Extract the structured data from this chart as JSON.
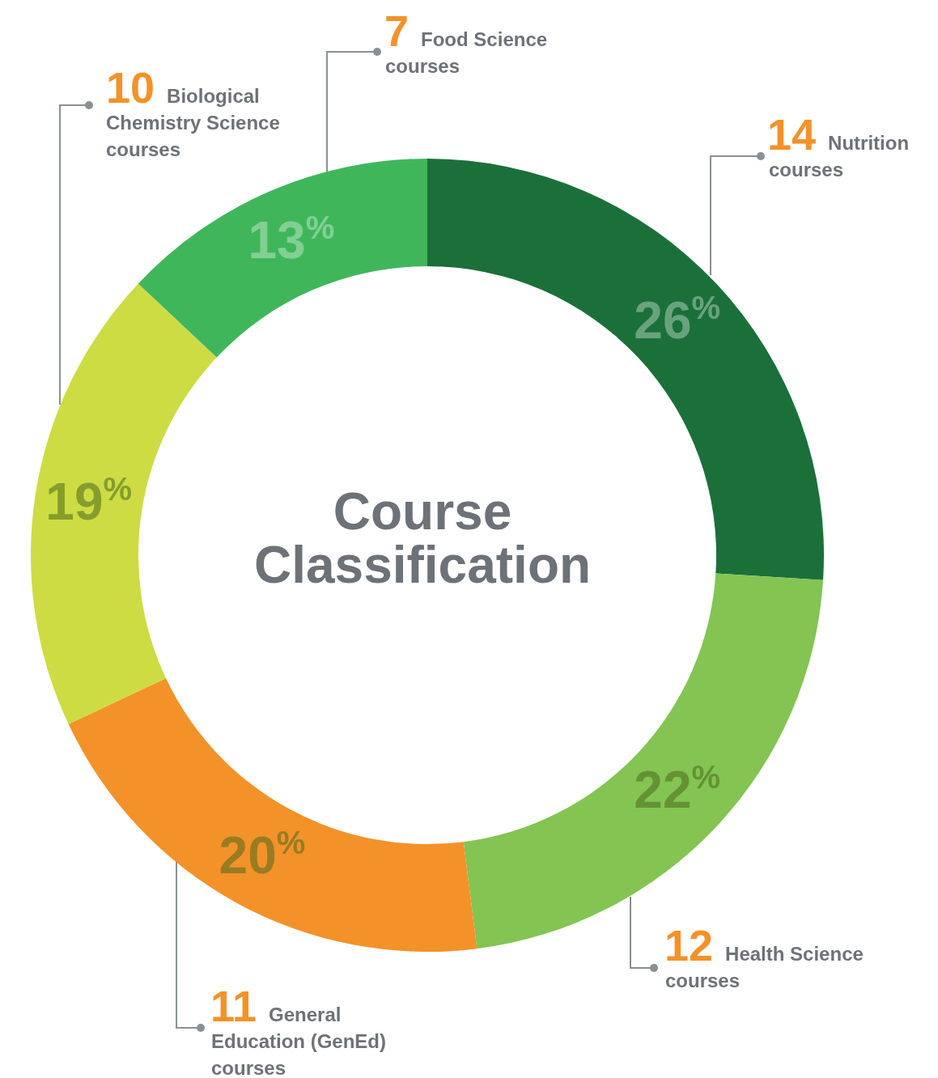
{
  "chart_data": {
    "type": "donut",
    "title": "Course Classification",
    "categories": [
      "14 Nutrition courses",
      "12 Health Science courses",
      "11 General Education (GenEd) courses",
      "10 Biological Chemistry Science courses",
      "7 Food Science courses"
    ],
    "values": [
      26,
      22,
      20,
      19,
      13
    ],
    "colors": [
      "#1b703a",
      "#83c452",
      "#f39229",
      "#cddc43",
      "#40b65b"
    ],
    "value_labels": [
      "26$^{%}$",
      "22$^{%}$",
      "20$^{%}$",
      "19$^{%}$",
      "13$^{%}$"
    ]
  }
}
